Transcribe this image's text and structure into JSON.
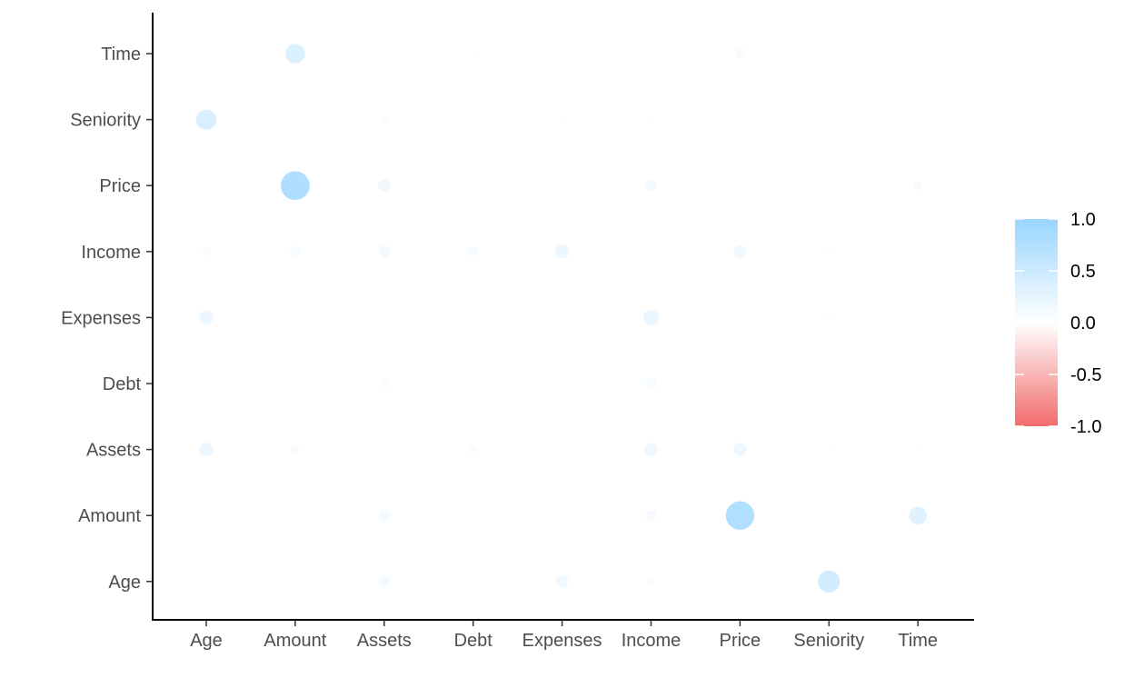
{
  "chart_data": {
    "type": "scatter",
    "subtype": "correlation-bubble-matrix",
    "variables": [
      "Age",
      "Amount",
      "Assets",
      "Debt",
      "Expenses",
      "Income",
      "Price",
      "Seniority",
      "Time"
    ],
    "x_categories": [
      "Age",
      "Amount",
      "Assets",
      "Debt",
      "Expenses",
      "Income",
      "Price",
      "Seniority",
      "Time"
    ],
    "y_categories": [
      "Age",
      "Amount",
      "Assets",
      "Debt",
      "Expenses",
      "Income",
      "Price",
      "Seniority",
      "Time"
    ],
    "matrix": [
      [
        null,
        null,
        0.12,
        0.02,
        0.15,
        0.06,
        0.02,
        0.45,
        0.01
      ],
      [
        null,
        null,
        0.12,
        0.01,
        0.01,
        0.11,
        0.76,
        null,
        0.3
      ],
      [
        0.18,
        0.08,
        null,
        0.06,
        0.01,
        0.16,
        0.16,
        0.03,
        -0.01
      ],
      [
        0.01,
        0.01,
        0.07,
        null,
        0.01,
        0.1,
        0.01,
        0.01,
        0.01
      ],
      [
        0.18,
        0.01,
        0.01,
        0.01,
        null,
        0.22,
        0.01,
        0.03,
        null
      ],
      [
        0.07,
        0.1,
        0.13,
        0.09,
        0.18,
        null,
        0.15,
        0.04,
        0.01
      ],
      [
        0.01,
        0.78,
        0.14,
        0.01,
        0.01,
        0.13,
        null,
        0.01,
        0.07
      ],
      [
        0.38,
        null,
        0.06,
        0.01,
        0.04,
        0.05,
        0.01,
        null,
        0.01
      ],
      [
        0.01,
        0.36,
        -0.01,
        0.03,
        null,
        0.01,
        0.1,
        0.01,
        null
      ]
    ],
    "legend": {
      "ticks": [
        "1.0",
        "0.5",
        "0.0",
        "-0.5",
        "-1.0"
      ],
      "tick_values": [
        1.0,
        0.5,
        0.0,
        -0.5,
        -1.0
      ],
      "range": [
        -1.0,
        1.0
      ],
      "placement": "right"
    },
    "colors": {
      "positive": "#99d5ff",
      "zero": "#ffffff",
      "negative": "#f26b6b",
      "axis": "#000000",
      "tick_text": "#4d4d4d",
      "legend_text": "#000000"
    },
    "grid": false,
    "title": "",
    "xlabel": "",
    "ylabel": ""
  }
}
